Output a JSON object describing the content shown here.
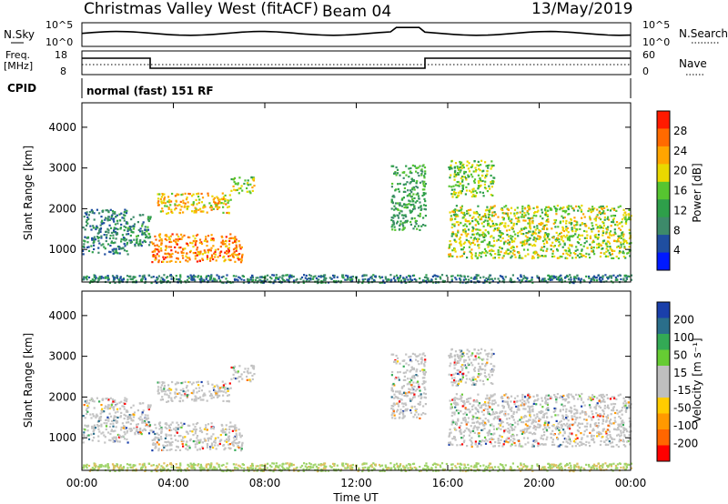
{
  "header": {
    "station": "Christmas Valley West (fitACF)",
    "beam": "Beam 04",
    "date": "13/May/2019"
  },
  "noise_panel": {
    "left_label": "N.Sky",
    "left_ticks": [
      "10^5",
      "10^0"
    ],
    "right_label": "N.Search",
    "right_ticks": [
      "10^5",
      "10^0"
    ]
  },
  "freq_panel": {
    "left_label_1": "Freq.",
    "left_label_2": "[MHz]",
    "left_ticks": [
      "18",
      "8"
    ],
    "right_label": "Nave",
    "right_ticks": [
      "60",
      "0"
    ]
  },
  "cpid": {
    "label": "CPID",
    "text": "normal (fast) 151 RF"
  },
  "colors": {
    "power_scale": [
      "#0019ff",
      "#1f4ea0",
      "#3d8a6a",
      "#2e9f4a",
      "#56c530",
      "#e9d800",
      "#ffa500",
      "#ff6a00",
      "#ff1a00"
    ],
    "velocity_scale": [
      "#ff0000",
      "#ff6600",
      "#ff9900",
      "#ffcc00",
      "#bfbfbf",
      "#bfbfbf",
      "#66cc33",
      "#33aa55",
      "#2a6e8a",
      "#1a3faa"
    ]
  },
  "chart_data": [
    {
      "type": "heatmap",
      "name": "power",
      "ylabel": "Slant Range [km]",
      "yticks": [
        "1000",
        "2000",
        "3000",
        "4000"
      ],
      "ylim": [
        200,
        4600
      ],
      "xlim_hours": [
        0,
        24
      ],
      "colorbar_label": "Power [dB]",
      "colorbar_ticks": [
        "4",
        "8",
        "12",
        "16",
        "20",
        "24",
        "28"
      ],
      "echo_regions": [
        {
          "t": [
            0.0,
            2.0
          ],
          "r": [
            900,
            2000
          ],
          "power": 8
        },
        {
          "t": [
            2.0,
            3.0
          ],
          "r": [
            1100,
            1900
          ],
          "power": 10
        },
        {
          "t": [
            3.0,
            7.0
          ],
          "r": [
            700,
            1400
          ],
          "power": 26
        },
        {
          "t": [
            3.2,
            6.5
          ],
          "r": [
            1900,
            2400
          ],
          "power": 22
        },
        {
          "t": [
            6.5,
            7.5
          ],
          "r": [
            2400,
            2800
          ],
          "power": 18
        },
        {
          "t": [
            13.5,
            15.0
          ],
          "r": [
            1500,
            3100
          ],
          "power": 12
        },
        {
          "t": [
            16.0,
            24.0
          ],
          "r": [
            800,
            2100
          ],
          "power": 18
        },
        {
          "t": [
            16.0,
            18.0
          ],
          "r": [
            2300,
            3200
          ],
          "power": 16
        },
        {
          "t": [
            0.0,
            24.0
          ],
          "r": [
            200,
            400
          ],
          "power": 8
        }
      ]
    },
    {
      "type": "heatmap",
      "name": "velocity",
      "ylabel": "Slant Range [km]",
      "yticks": [
        "1000",
        "2000",
        "3000",
        "4000"
      ],
      "ylim": [
        200,
        4600
      ],
      "xlabel": "Time UT",
      "xticks": [
        "00:00",
        "04:00",
        "08:00",
        "12:00",
        "16:00",
        "20:00",
        "00:00"
      ],
      "xlim_hours": [
        0,
        24
      ],
      "colorbar_label": "Velocity [m s⁻¹]",
      "colorbar_ticks": [
        "200",
        "100",
        "50",
        "15",
        "-15",
        "-50",
        "-100",
        "-200"
      ]
    }
  ]
}
